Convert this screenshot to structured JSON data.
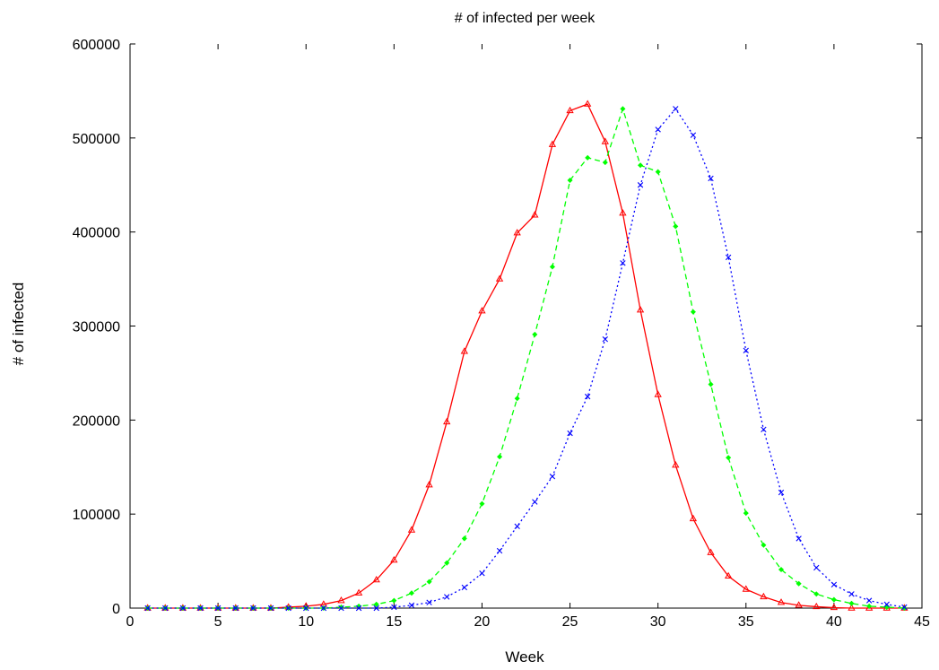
{
  "chart_data": {
    "type": "line",
    "title": "# of infected per week",
    "xlabel": "Week",
    "ylabel": "# of infected",
    "xlim": [
      0,
      45
    ],
    "ylim": [
      0,
      600000
    ],
    "xticks": [
      0,
      5,
      10,
      15,
      20,
      25,
      30,
      35,
      40,
      45
    ],
    "yticks": [
      0,
      100000,
      200000,
      300000,
      400000,
      500000,
      600000
    ],
    "grid": false,
    "legend": "none",
    "x": [
      1,
      2,
      3,
      4,
      5,
      6,
      7,
      8,
      9,
      10,
      11,
      12,
      13,
      14,
      15,
      16,
      17,
      18,
      19,
      20,
      21,
      22,
      23,
      24,
      25,
      26,
      27,
      28,
      29,
      30,
      31,
      32,
      33,
      34,
      35,
      36,
      37,
      38,
      39,
      40,
      41,
      42,
      43,
      44
    ],
    "series": [
      {
        "color": "#ff0000",
        "line_style": "solid",
        "marker": "triangle",
        "values": [
          0,
          0,
          0,
          0,
          0,
          0,
          0,
          0,
          1000,
          2000,
          4000,
          8000,
          16000,
          30000,
          51000,
          83000,
          131000,
          198000,
          273000,
          316000,
          350000,
          399000,
          418000,
          493000,
          529000,
          536000,
          496000,
          420000,
          317000,
          227000,
          152000,
          95000,
          59000,
          34000,
          20000,
          12000,
          6000,
          3000,
          1500,
          500,
          0,
          0,
          0,
          0
        ]
      },
      {
        "color": "#00ff00",
        "line_style": "dashed",
        "marker": "diamond",
        "values": [
          0,
          0,
          0,
          0,
          0,
          0,
          0,
          0,
          0,
          0,
          0,
          1000,
          2000,
          4000,
          8000,
          16000,
          28000,
          48000,
          74000,
          111000,
          161000,
          223000,
          291000,
          363000,
          455000,
          479000,
          474000,
          531000,
          471000,
          464000,
          406000,
          315000,
          238000,
          160000,
          101000,
          67000,
          41000,
          26000,
          15000,
          9000,
          5000,
          2000,
          1000,
          0
        ]
      },
      {
        "color": "#0000ff",
        "line_style": "dotted",
        "marker": "cross",
        "values": [
          0,
          0,
          0,
          0,
          0,
          0,
          0,
          0,
          0,
          0,
          0,
          0,
          0,
          0,
          1000,
          3000,
          6000,
          12000,
          22000,
          37000,
          61000,
          87000,
          113000,
          140000,
          186000,
          225000,
          286000,
          367000,
          450000,
          509000,
          531000,
          503000,
          457000,
          373000,
          274000,
          190000,
          123000,
          74000,
          43000,
          25000,
          15000,
          8000,
          4000,
          1000
        ]
      }
    ]
  }
}
